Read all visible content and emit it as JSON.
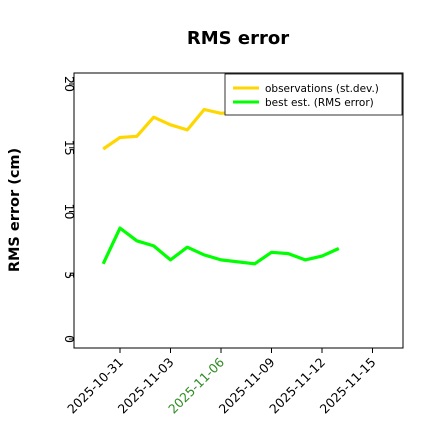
{
  "chart_data": {
    "type": "line",
    "title": "RMS error",
    "xlabel": "",
    "ylabel": "RMS error (cm)",
    "ylim": [
      0,
      21
    ],
    "yticks": [
      0,
      5,
      10,
      15,
      20
    ],
    "x_tick_labels": [
      {
        "label": "2025-10-31",
        "color": "#000000"
      },
      {
        "label": "2025-11-03",
        "color": "#000000"
      },
      {
        "label": "2025-11-06",
        "color": "#2e8b22"
      },
      {
        "label": "2025-11-09",
        "color": "#000000"
      },
      {
        "label": "2025-11-12",
        "color": "#000000"
      },
      {
        "label": "2025-11-15",
        "color": "#000000"
      }
    ],
    "x_dates": [
      "2025-10-30",
      "2025-10-31",
      "2025-11-01",
      "2025-11-02",
      "2025-11-03",
      "2025-11-04",
      "2025-11-05",
      "2025-11-06",
      "2025-11-08",
      "2025-11-09",
      "2025-11-10",
      "2025-11-11",
      "2025-11-12",
      "2025-11-13"
    ],
    "grid": false,
    "legend_position": "top-right",
    "series": [
      {
        "name": "observations (st.dev.)",
        "color": "#ffd700",
        "x": [
          "2025-10-30",
          "2025-10-31",
          "2025-11-01",
          "2025-11-02",
          "2025-11-03",
          "2025-11-04",
          "2025-11-05",
          "2025-11-06",
          "2025-11-08",
          "2025-11-09",
          "2025-11-10",
          "2025-11-11",
          "2025-11-12",
          "2025-11-13"
        ],
        "values": [
          14.9,
          15.8,
          15.9,
          17.4,
          16.8,
          16.4,
          18.0,
          17.7,
          17.9,
          18.6,
          18.3,
          18.4,
          18.5,
          18.2
        ]
      },
      {
        "name": "best est. (RMS error)",
        "color": "#00ff00",
        "x": [
          "2025-10-30",
          "2025-10-31",
          "2025-11-01",
          "2025-11-02",
          "2025-11-03",
          "2025-11-04",
          "2025-11-05",
          "2025-11-06",
          "2025-11-08",
          "2025-11-09",
          "2025-11-10",
          "2025-11-11",
          "2025-11-12",
          "2025-11-13"
        ],
        "values": [
          5.9,
          8.7,
          7.7,
          7.3,
          6.2,
          7.2,
          6.6,
          6.2,
          5.9,
          6.8,
          6.7,
          6.2,
          6.5,
          7.1
        ]
      }
    ]
  }
}
